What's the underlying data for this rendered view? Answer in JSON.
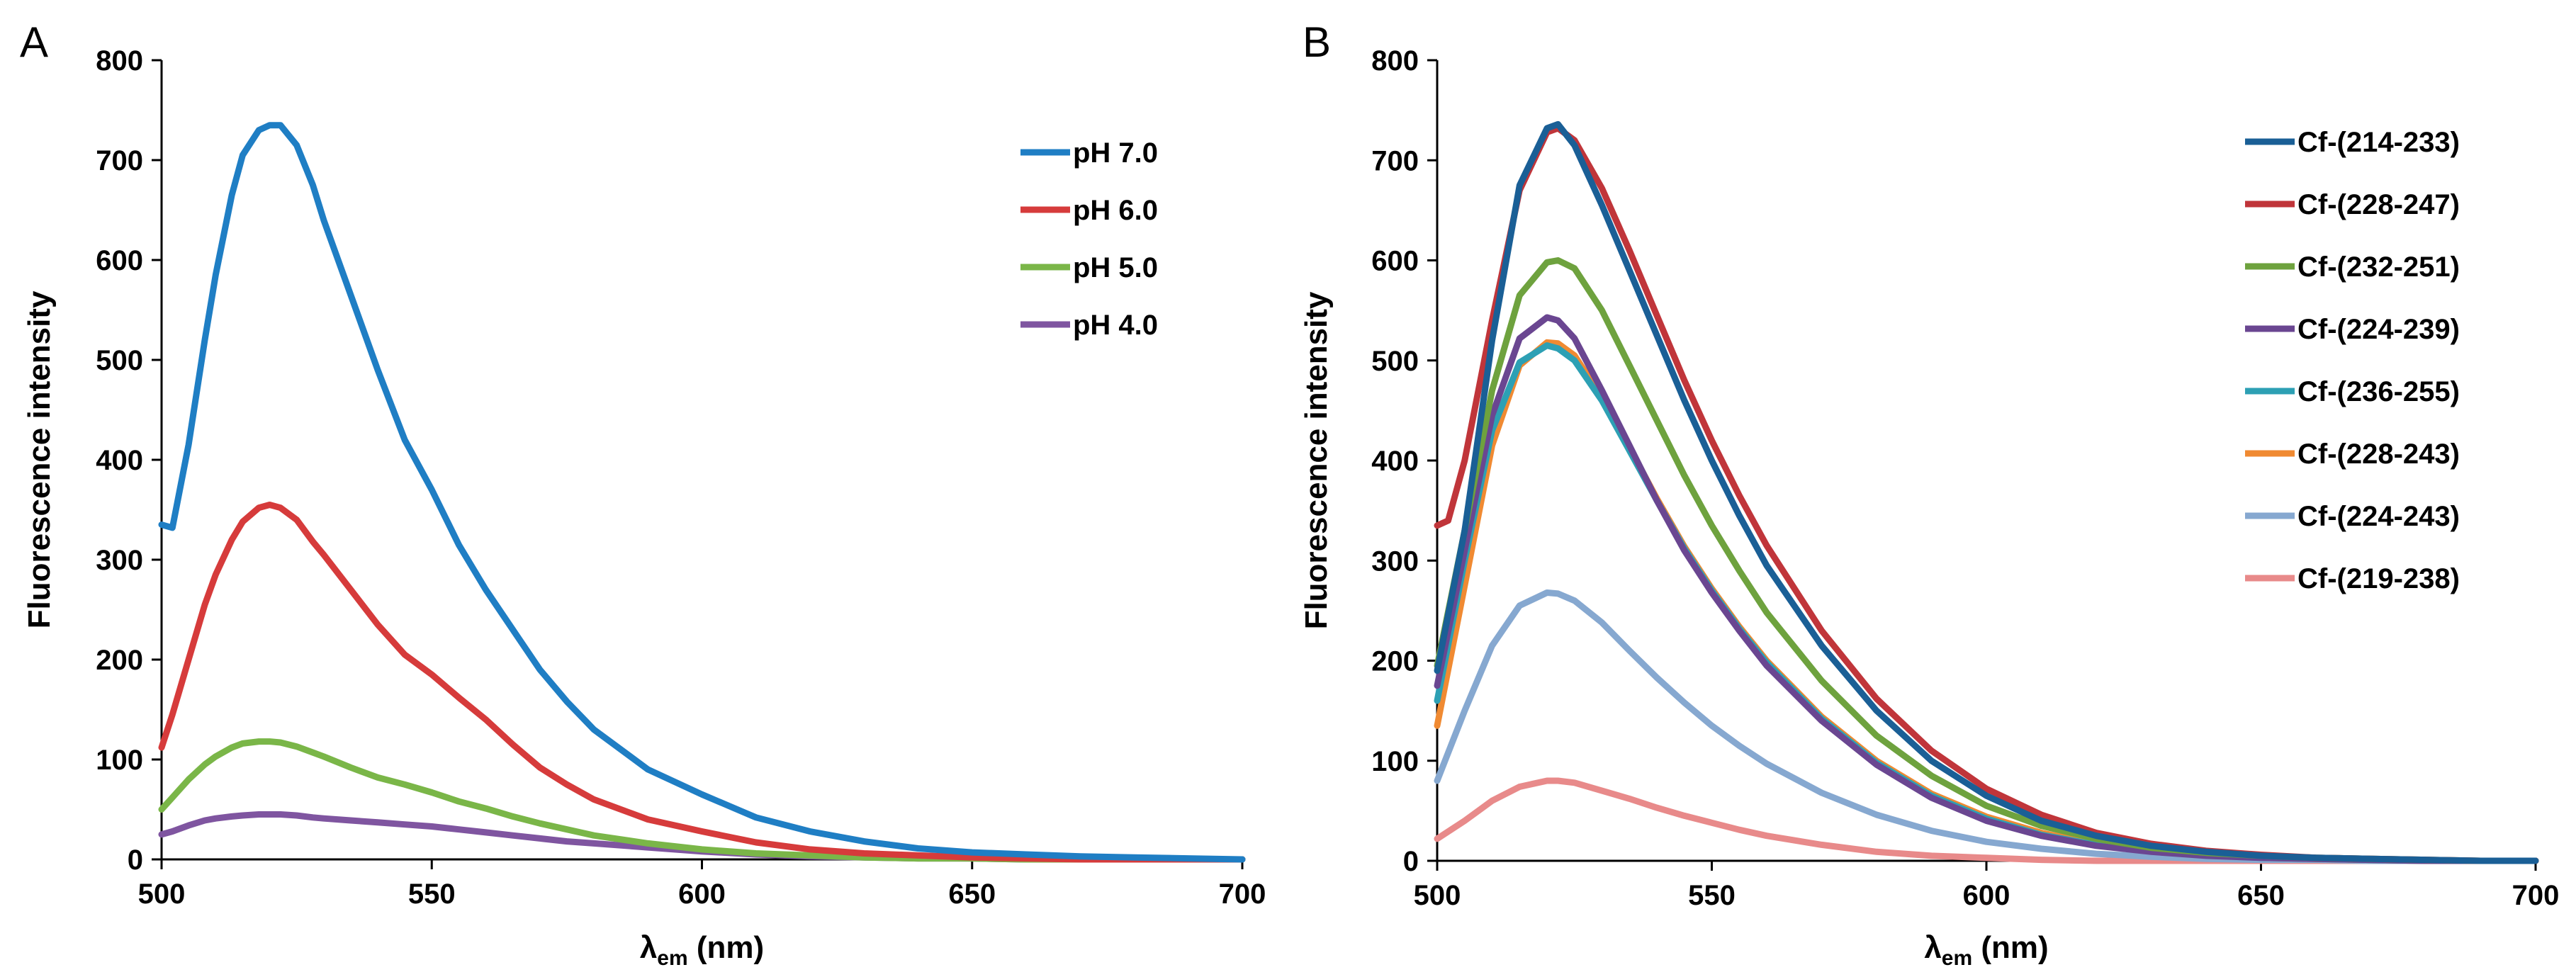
{
  "chart_data": [
    {
      "panel": "A",
      "type": "line",
      "xlabel_main": "λ",
      "xlabel_sub": "em",
      "xlabel_rest": " (nm)",
      "ylabel": "Fluorescence intensity",
      "xlim": [
        500,
        700
      ],
      "ylim": [
        0,
        800
      ],
      "xticks": [
        500,
        550,
        600,
        650,
        700
      ],
      "yticks": [
        0,
        100,
        200,
        300,
        400,
        500,
        600,
        700,
        800
      ],
      "legend_position": "top-right",
      "series": [
        {
          "name": "pH 7.0",
          "color": "#1f7ec4",
          "x": [
            500,
            502,
            505,
            508,
            510,
            513,
            515,
            518,
            520,
            522,
            525,
            528,
            530,
            535,
            540,
            545,
            550,
            555,
            560,
            565,
            570,
            575,
            580,
            590,
            600,
            610,
            620,
            630,
            640,
            650,
            660,
            670,
            680,
            690,
            700
          ],
          "y": [
            335,
            332,
            415,
            520,
            585,
            665,
            705,
            730,
            735,
            735,
            715,
            675,
            640,
            565,
            490,
            420,
            370,
            315,
            270,
            230,
            190,
            158,
            130,
            90,
            65,
            42,
            28,
            18,
            11,
            7,
            5,
            3,
            2,
            1,
            0
          ]
        },
        {
          "name": "pH 6.0",
          "color": "#d63b3b",
          "x": [
            500,
            502,
            505,
            508,
            510,
            513,
            515,
            518,
            520,
            522,
            525,
            528,
            530,
            535,
            540,
            545,
            550,
            555,
            560,
            565,
            570,
            575,
            580,
            590,
            600,
            610,
            620,
            630,
            640,
            650,
            660,
            670,
            680,
            690,
            700
          ],
          "y": [
            112,
            145,
            200,
            255,
            285,
            320,
            338,
            352,
            355,
            352,
            340,
            318,
            305,
            270,
            235,
            205,
            185,
            162,
            140,
            115,
            92,
            75,
            60,
            40,
            28,
            17,
            10,
            6,
            4,
            2,
            1,
            0,
            0,
            0,
            0
          ]
        },
        {
          "name": "pH 5.0",
          "color": "#7ab648",
          "x": [
            500,
            502,
            505,
            508,
            510,
            513,
            515,
            518,
            520,
            522,
            525,
            528,
            530,
            535,
            540,
            545,
            550,
            555,
            560,
            565,
            570,
            575,
            580,
            590,
            600,
            610,
            620,
            630,
            640,
            650,
            660,
            670,
            680,
            690,
            700
          ],
          "y": [
            50,
            62,
            80,
            95,
            103,
            112,
            116,
            118,
            118,
            117,
            113,
            107,
            103,
            92,
            82,
            75,
            67,
            58,
            51,
            43,
            36,
            30,
            24,
            16,
            10,
            6,
            4,
            2,
            1,
            1,
            0,
            0,
            0,
            0,
            0
          ]
        },
        {
          "name": "pH 4.0",
          "color": "#7f55a0",
          "x": [
            500,
            502,
            505,
            508,
            510,
            513,
            515,
            518,
            520,
            522,
            525,
            528,
            530,
            535,
            540,
            545,
            550,
            555,
            560,
            565,
            570,
            575,
            580,
            590,
            600,
            610,
            620,
            630,
            640,
            650,
            660,
            670,
            680,
            690,
            700
          ],
          "y": [
            25,
            28,
            34,
            39,
            41,
            43,
            44,
            45,
            45,
            45,
            44,
            42,
            41,
            39,
            37,
            35,
            33,
            30,
            27,
            24,
            21,
            18,
            16,
            12,
            8,
            5,
            3,
            2,
            1,
            1,
            0,
            0,
            0,
            0,
            0
          ]
        }
      ]
    },
    {
      "panel": "B",
      "type": "line",
      "xlabel_main": "λ",
      "xlabel_sub": "em",
      "xlabel_rest": " (nm)",
      "ylabel": "Fluorescence intensity",
      "xlim": [
        500,
        700
      ],
      "ylim": [
        0,
        800
      ],
      "xticks": [
        500,
        550,
        600,
        650,
        700
      ],
      "yticks": [
        0,
        100,
        200,
        300,
        400,
        500,
        600,
        700,
        800
      ],
      "legend_position": "top-right",
      "series": [
        {
          "name": "Cf-(214-233)",
          "color": "#1a5f96",
          "x": [
            500,
            505,
            510,
            515,
            520,
            522,
            525,
            530,
            535,
            540,
            545,
            550,
            555,
            560,
            570,
            580,
            590,
            600,
            610,
            620,
            630,
            640,
            650,
            660,
            670,
            680,
            690,
            700
          ],
          "y": [
            190,
            330,
            520,
            675,
            732,
            736,
            715,
            655,
            590,
            525,
            460,
            400,
            345,
            295,
            215,
            150,
            100,
            65,
            40,
            25,
            15,
            9,
            5,
            3,
            2,
            1,
            0,
            0
          ]
        },
        {
          "name": "Cf-(228-247)",
          "color": "#c0353a",
          "x": [
            500,
            502,
            505,
            510,
            515,
            520,
            522,
            525,
            530,
            535,
            540,
            545,
            550,
            555,
            560,
            570,
            580,
            590,
            600,
            610,
            620,
            630,
            640,
            650,
            660,
            670,
            680,
            690,
            700
          ],
          "y": [
            335,
            340,
            400,
            540,
            670,
            728,
            732,
            720,
            672,
            610,
            545,
            480,
            420,
            365,
            315,
            230,
            162,
            110,
            72,
            46,
            28,
            17,
            10,
            6,
            3,
            2,
            1,
            0,
            0
          ]
        },
        {
          "name": "Cf-(232-251)",
          "color": "#6ea23e",
          "x": [
            500,
            505,
            510,
            515,
            520,
            522,
            525,
            530,
            535,
            540,
            545,
            550,
            555,
            560,
            570,
            580,
            590,
            600,
            610,
            620,
            630,
            640,
            650,
            660,
            670,
            680,
            690,
            700
          ],
          "y": [
            195,
            330,
            470,
            565,
            598,
            600,
            592,
            550,
            495,
            440,
            385,
            335,
            290,
            248,
            180,
            125,
            85,
            55,
            35,
            22,
            13,
            8,
            5,
            3,
            2,
            1,
            0,
            0
          ]
        },
        {
          "name": "Cf-(224-239)",
          "color": "#6a4691",
          "x": [
            500,
            505,
            510,
            515,
            520,
            522,
            525,
            530,
            535,
            540,
            545,
            550,
            555,
            560,
            570,
            580,
            590,
            600,
            610,
            620,
            630,
            640,
            650,
            660,
            670,
            680,
            690,
            700
          ],
          "y": [
            175,
            310,
            445,
            522,
            543,
            540,
            522,
            470,
            415,
            360,
            310,
            268,
            230,
            195,
            140,
            96,
            63,
            40,
            25,
            15,
            9,
            5,
            3,
            2,
            1,
            0,
            0,
            0
          ]
        },
        {
          "name": "Cf-(236-255)",
          "color": "#2da0b4",
          "x": [
            500,
            505,
            510,
            515,
            520,
            522,
            525,
            530,
            535,
            540,
            545,
            550,
            555,
            560,
            570,
            580,
            590,
            600,
            610,
            620,
            630,
            640,
            650,
            660,
            670,
            680,
            690,
            700
          ],
          "y": [
            160,
            300,
            430,
            498,
            515,
            512,
            500,
            460,
            410,
            360,
            312,
            270,
            232,
            198,
            142,
            98,
            65,
            42,
            26,
            16,
            10,
            6,
            3,
            2,
            1,
            0,
            0,
            0
          ]
        },
        {
          "name": "Cf-(228-243)",
          "color": "#f08a32",
          "x": [
            500,
            505,
            510,
            515,
            520,
            522,
            525,
            530,
            535,
            540,
            545,
            550,
            555,
            560,
            570,
            580,
            590,
            600,
            610,
            620,
            630,
            640,
            650,
            660,
            670,
            680,
            690,
            700
          ],
          "y": [
            135,
            275,
            415,
            495,
            518,
            517,
            505,
            463,
            413,
            362,
            314,
            272,
            234,
            200,
            144,
            100,
            67,
            44,
            28,
            17,
            10,
            6,
            4,
            2,
            1,
            0,
            0,
            0
          ]
        },
        {
          "name": "Cf-(224-243)",
          "color": "#86a8d0",
          "x": [
            500,
            505,
            510,
            515,
            520,
            522,
            525,
            530,
            535,
            540,
            545,
            550,
            555,
            560,
            570,
            580,
            590,
            600,
            610,
            620,
            630,
            640,
            650,
            660,
            670,
            680,
            690,
            700
          ],
          "y": [
            80,
            150,
            215,
            255,
            268,
            267,
            260,
            238,
            210,
            183,
            158,
            135,
            115,
            97,
            68,
            46,
            30,
            19,
            12,
            7,
            4,
            2,
            1,
            1,
            0,
            0,
            0,
            0
          ]
        },
        {
          "name": "Cf-(219-238)",
          "color": "#e88a8a",
          "x": [
            500,
            505,
            510,
            515,
            520,
            522,
            525,
            530,
            535,
            540,
            545,
            550,
            555,
            560,
            570,
            580,
            590,
            600,
            610,
            620,
            630,
            640,
            650,
            660,
            670,
            680,
            690,
            700
          ],
          "y": [
            22,
            40,
            60,
            74,
            80,
            80,
            78,
            70,
            62,
            53,
            45,
            38,
            31,
            25,
            16,
            9,
            5,
            3,
            1,
            0,
            0,
            0,
            0,
            0,
            0,
            0,
            0,
            0
          ]
        }
      ]
    }
  ]
}
